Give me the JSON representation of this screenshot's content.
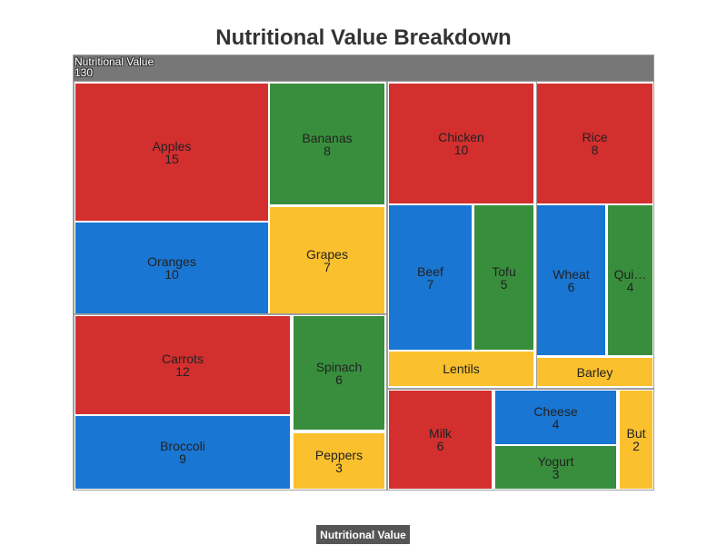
{
  "chart_data": {
    "type": "treemap",
    "title": "Nutritional Value Breakdown",
    "root": {
      "name": "Nutritional Value",
      "value": 130
    },
    "legend": "Nutritional Value",
    "colors": {
      "red": "#d32f2f",
      "green": "#388e3c",
      "blue": "#1976d2",
      "yellow": "#fbc02d"
    },
    "groups": [
      {
        "items": [
          {
            "name": "Apples",
            "value": 15,
            "color": "red"
          },
          {
            "name": "Bananas",
            "value": 8,
            "color": "green"
          },
          {
            "name": "Oranges",
            "value": 10,
            "color": "blue"
          },
          {
            "name": "Grapes",
            "value": 7,
            "color": "yellow"
          }
        ]
      },
      {
        "items": [
          {
            "name": "Carrots",
            "value": 12,
            "color": "red"
          },
          {
            "name": "Spinach",
            "value": 6,
            "color": "green"
          },
          {
            "name": "Broccoli",
            "value": 9,
            "color": "blue"
          },
          {
            "name": "Peppers",
            "value": 3,
            "color": "yellow"
          }
        ]
      },
      {
        "items": [
          {
            "name": "Chicken",
            "value": 10,
            "color": "red"
          },
          {
            "name": "Tofu",
            "value": 5,
            "color": "green"
          },
          {
            "name": "Beef",
            "value": 7,
            "color": "blue"
          },
          {
            "name": "Lentils",
            "value": "",
            "color": "yellow"
          }
        ]
      },
      {
        "items": [
          {
            "name": "Rice",
            "value": 8,
            "color": "red"
          },
          {
            "name": "Qui…",
            "value": 4,
            "color": "green"
          },
          {
            "name": "Wheat",
            "value": 6,
            "color": "blue"
          },
          {
            "name": "Barley",
            "value": "",
            "color": "yellow"
          }
        ]
      },
      {
        "items": [
          {
            "name": "Milk",
            "value": 6,
            "color": "red"
          },
          {
            "name": "Yogurt",
            "value": 3,
            "color": "green"
          },
          {
            "name": "Cheese",
            "value": 4,
            "color": "blue"
          },
          {
            "name": "But",
            "value": 2,
            "color": "yellow"
          }
        ]
      }
    ]
  }
}
